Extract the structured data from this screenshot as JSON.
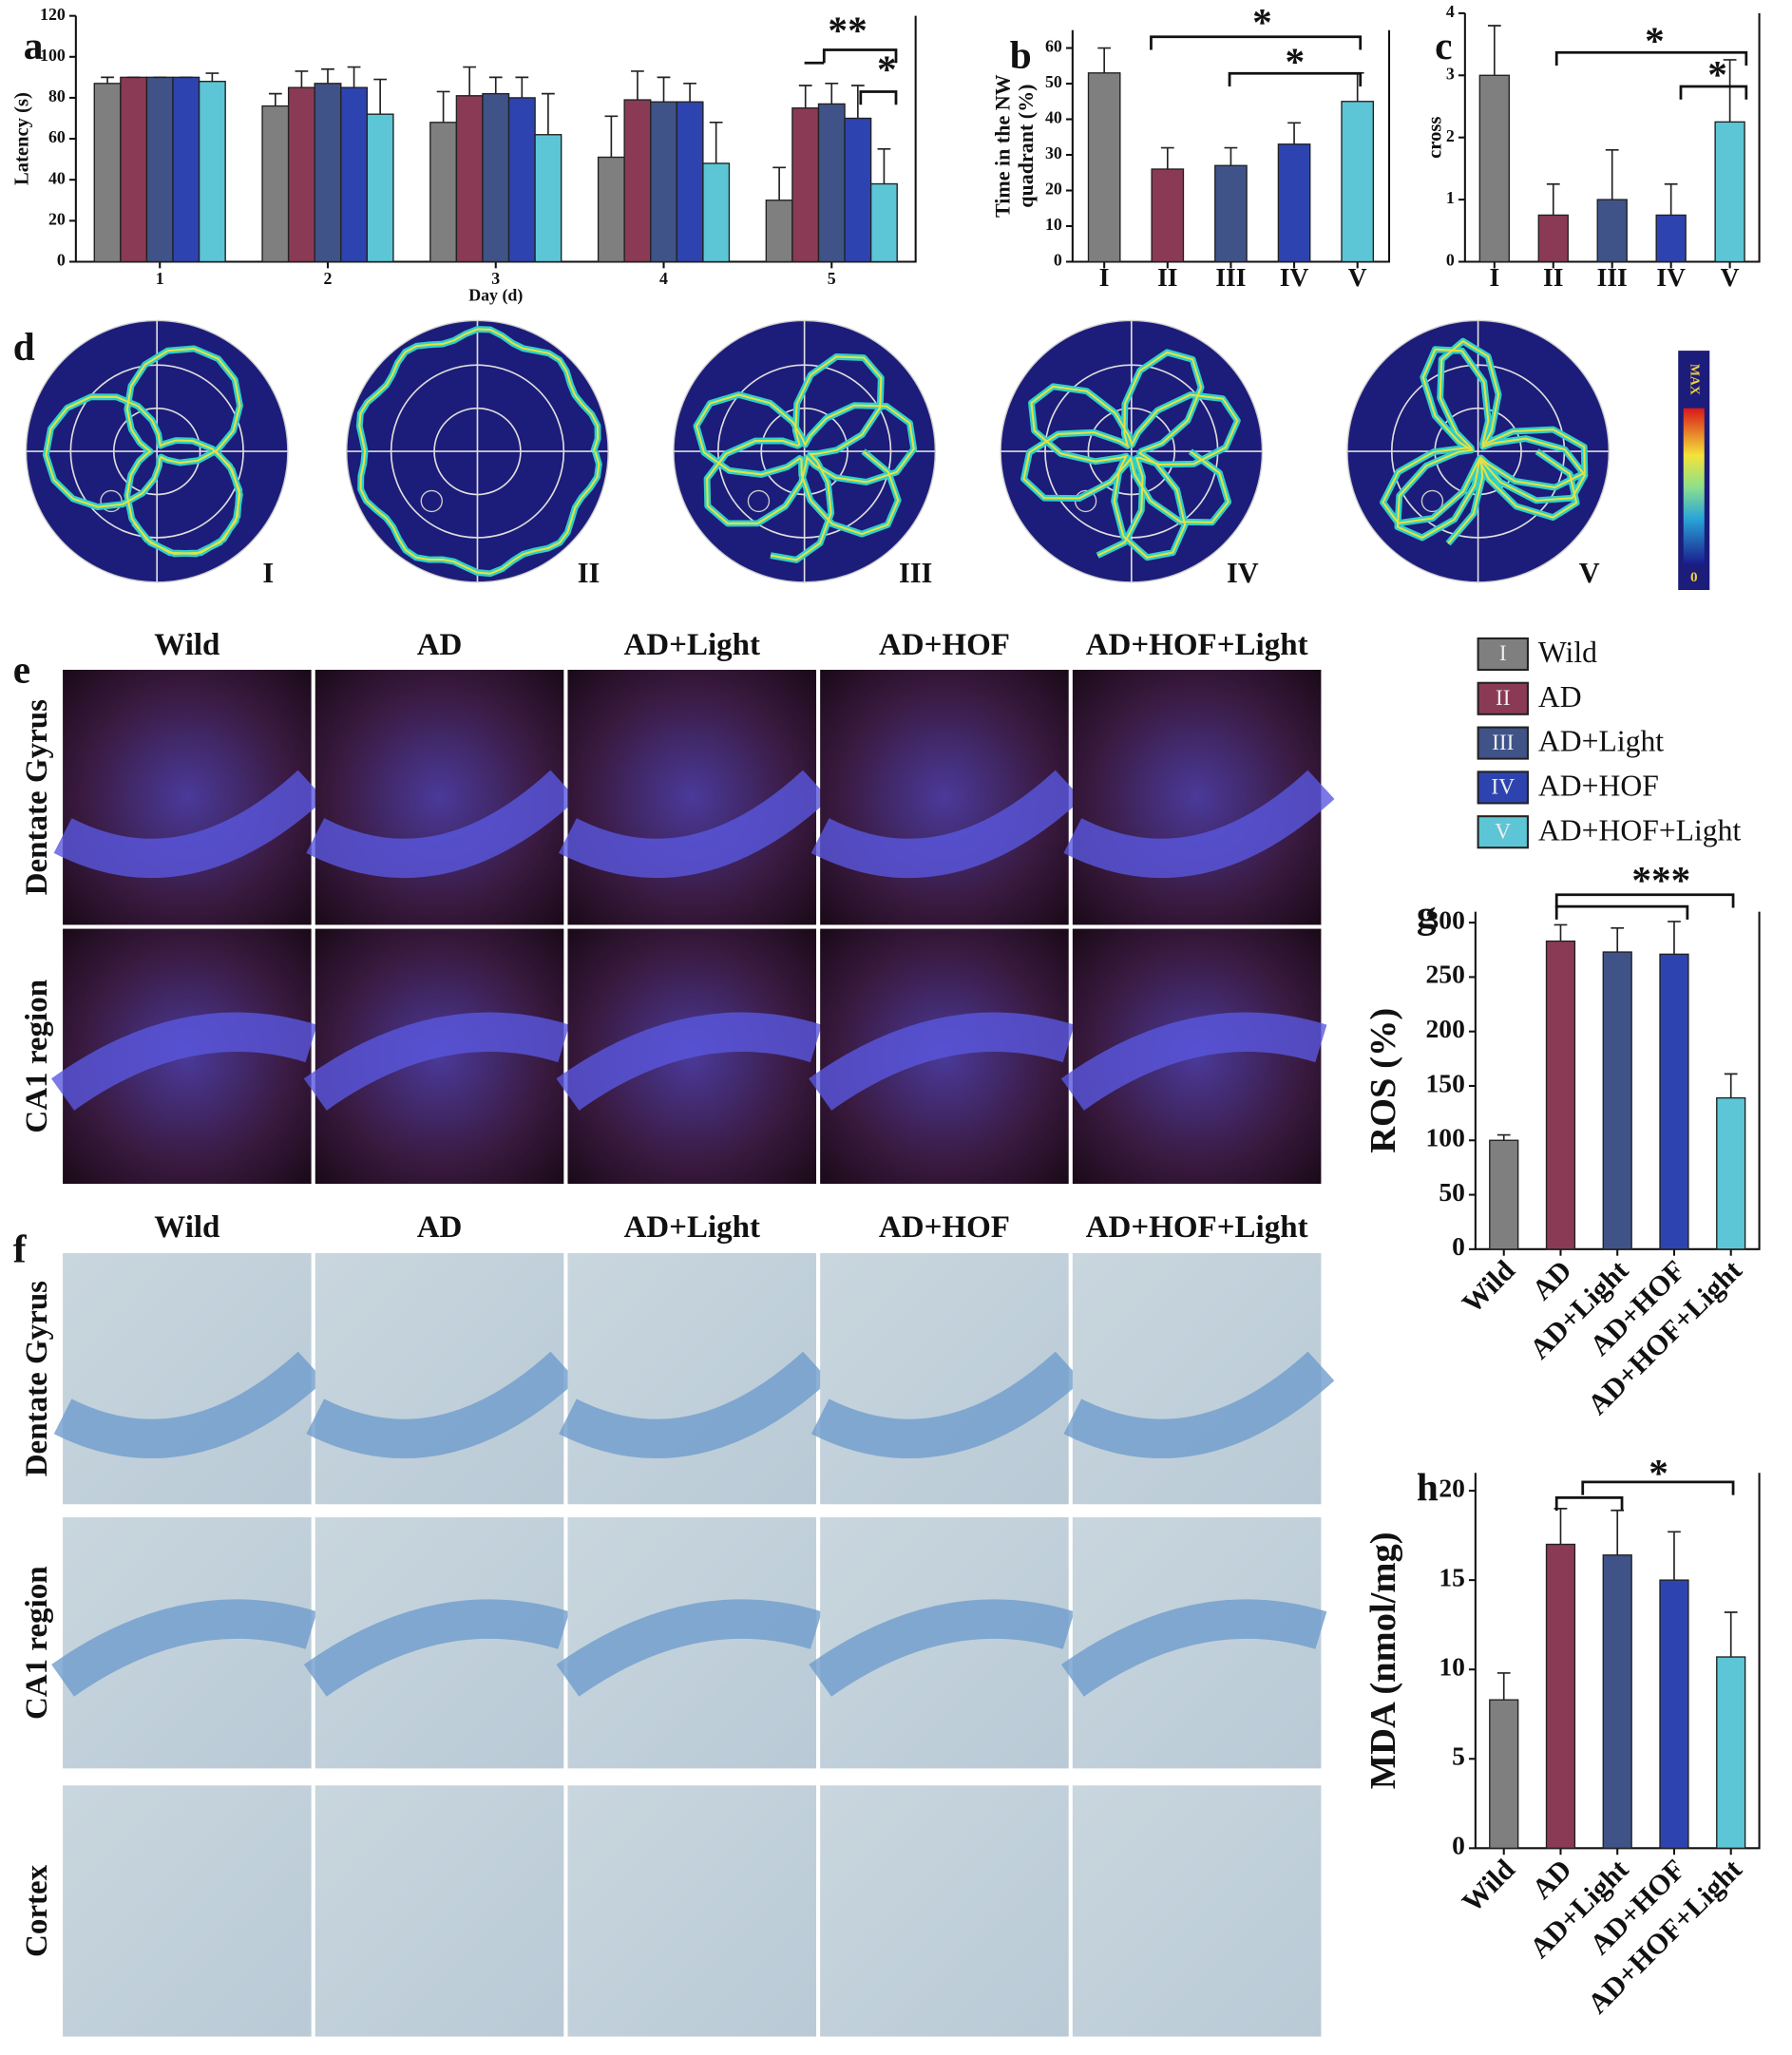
{
  "chart_data": [
    {
      "type": "bar",
      "panel": "a",
      "ylabel": "Latency (s)",
      "xlabel": "Day (d)",
      "categories": [
        "1",
        "2",
        "3",
        "4",
        "5"
      ],
      "series": [
        {
          "color": "#7f7f7f",
          "values": [
            87,
            76,
            68,
            51,
            30
          ],
          "errors": [
            3,
            6,
            15,
            20,
            16
          ]
        },
        {
          "color": "#8b3a55",
          "values": [
            90,
            85,
            81,
            79,
            75
          ],
          "errors": [
            0,
            8,
            14,
            14,
            11
          ]
        },
        {
          "color": "#3f5388",
          "values": [
            90,
            87,
            82,
            78,
            77
          ],
          "errors": [
            0,
            7,
            8,
            12,
            10
          ]
        },
        {
          "color": "#2d44b0",
          "values": [
            90,
            85,
            80,
            78,
            70
          ],
          "errors": [
            0,
            10,
            10,
            9,
            16
          ]
        },
        {
          "color": "#5cc6d6",
          "values": [
            88,
            72,
            62,
            48,
            38
          ],
          "errors": [
            4,
            17,
            20,
            20,
            17
          ]
        }
      ],
      "ylim": [
        0,
        120
      ],
      "yticks": [
        0,
        20,
        40,
        60,
        80,
        100,
        120
      ],
      "annotations": [
        "**",
        "*"
      ]
    },
    {
      "type": "bar",
      "panel": "b",
      "ylabel": [
        "Time in the NW",
        "quadrant (%)"
      ],
      "categories": [
        "I",
        "II",
        "III",
        "IV",
        "V"
      ],
      "values": [
        53,
        26,
        27,
        33,
        45
      ],
      "errors": [
        7,
        6,
        5,
        6,
        8
      ],
      "colors": [
        "#7f7f7f",
        "#8b3a55",
        "#3f5388",
        "#2d44b0",
        "#5cc6d6"
      ],
      "ylim": [
        0,
        65
      ],
      "yticks": [
        0,
        10,
        20,
        30,
        40,
        50,
        60
      ],
      "annotations": [
        "*",
        "*"
      ]
    },
    {
      "type": "bar",
      "panel": "c",
      "ylabel": "cross",
      "categories": [
        "I",
        "II",
        "III",
        "IV",
        "V"
      ],
      "values": [
        3.0,
        0.75,
        1.0,
        0.75,
        2.25
      ],
      "errors": [
        0.8,
        0.5,
        0.8,
        0.5,
        1.0
      ],
      "colors": [
        "#7f7f7f",
        "#8b3a55",
        "#3f5388",
        "#2d44b0",
        "#5cc6d6"
      ],
      "ylim": [
        0,
        4
      ],
      "yticks": [
        0,
        1,
        2,
        3,
        4
      ],
      "annotations": [
        "*",
        "*"
      ]
    },
    {
      "type": "bar",
      "panel": "g",
      "ylabel": "ROS (%)",
      "categories": [
        "Wild",
        "AD",
        "AD+Light",
        "AD+HOF",
        "AD+HOF+Light"
      ],
      "values": [
        100,
        283,
        273,
        271,
        139
      ],
      "errors": [
        5,
        15,
        22,
        30,
        22
      ],
      "colors": [
        "#7f7f7f",
        "#8b3a55",
        "#3f5388",
        "#2d44b0",
        "#5cc6d6"
      ],
      "ylim": [
        0,
        310
      ],
      "yticks": [
        0,
        50,
        100,
        150,
        200,
        250,
        300
      ],
      "annotations": [
        "***"
      ]
    },
    {
      "type": "bar",
      "panel": "h",
      "ylabel": "MDA (nmol/mg)",
      "categories": [
        "Wild",
        "AD",
        "AD+Light",
        "AD+HOF",
        "AD+HOF+Light"
      ],
      "values": [
        8.3,
        17,
        16.4,
        15,
        10.7
      ],
      "errors": [
        1.5,
        2,
        2.5,
        2.7,
        2.5
      ],
      "colors": [
        "#7f7f7f",
        "#8b3a55",
        "#3f5388",
        "#2d44b0",
        "#5cc6d6"
      ],
      "ylim": [
        0,
        21
      ],
      "yticks": [
        0,
        5,
        10,
        15,
        20
      ],
      "annotations": [
        "*"
      ]
    }
  ],
  "maze": {
    "panel": "d",
    "labels": [
      "I",
      "II",
      "III",
      "IV",
      "V"
    ],
    "colorbar": {
      "max": "MAX",
      "min": "0"
    }
  },
  "staining_e": {
    "panel": "e",
    "columns": [
      "Wild",
      "AD",
      "AD+Light",
      "AD+HOF",
      "AD+HOF+Light"
    ],
    "rows": [
      "Dentate Gyrus",
      "CA1 region"
    ]
  },
  "staining_f": {
    "panel": "f",
    "columns": [
      "Wild",
      "AD",
      "AD+Light",
      "AD+HOF",
      "AD+HOF+Light"
    ],
    "rows": [
      "Dentate Gyrus",
      "CA1 region",
      "Cortex"
    ]
  },
  "legend": {
    "items": [
      {
        "numeral": "I",
        "label": "Wild",
        "color": "#7f7f7f"
      },
      {
        "numeral": "II",
        "label": "AD",
        "color": "#8b3a55"
      },
      {
        "numeral": "III",
        "label": "AD+Light",
        "color": "#3f5388"
      },
      {
        "numeral": "IV",
        "label": "AD+HOF",
        "color": "#2d44b0"
      },
      {
        "numeral": "V",
        "label": "AD+HOF+Light",
        "color": "#5cc6d6"
      }
    ]
  }
}
